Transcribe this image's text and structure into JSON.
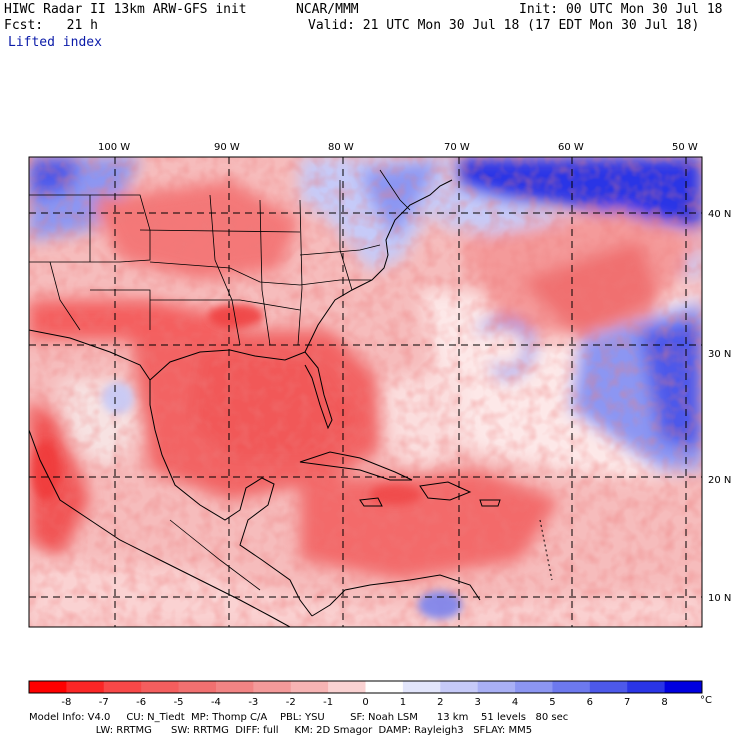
{
  "header": {
    "title": "HIWC Radar II 13km ARW-GFS init",
    "org": "NCAR/MMM",
    "init": "Init: 00 UTC Mon 30 Jul 18",
    "fcst": "Fcst:   21 h",
    "valid": "Valid: 21 UTC Mon 30 Jul 18 (17 EDT Mon 30 Jul 18)",
    "field": "Lifted index"
  },
  "map": {
    "lon_labels": [
      "100 W",
      "90 W",
      "80 W",
      "70 W",
      "60 W",
      "50 W"
    ],
    "lat_labels": [
      "40 N",
      "30 N",
      "20 N",
      "10 N"
    ],
    "lon_range": [
      -107.5,
      -48.5
    ],
    "lat_range": [
      8,
      44
    ],
    "colors": {
      "neg_strong": "#ff0000",
      "neg_mid": "#f06a6a",
      "neg_light": "#f8c8c8",
      "neutral": "#ffffff",
      "pos_light": "#d8dcf8",
      "pos_mid": "#8c96f0",
      "pos_strong": "#0000e0"
    }
  },
  "colorbar": {
    "labels": [
      "-8",
      "-7",
      "-6",
      "-5",
      "-4",
      "-3",
      "-2",
      "-1",
      "0",
      "1",
      "2",
      "3",
      "4",
      "5",
      "6",
      "7",
      "8"
    ],
    "unit": "°C",
    "colors": [
      "#ff0000",
      "#fb2626",
      "#f84848",
      "#f45e5e",
      "#f17070",
      "#f28484",
      "#f49a9a",
      "#f7b4b4",
      "#fad2d2",
      "#ffffff",
      "#e2e5fb",
      "#c6caf8",
      "#a9b0f5",
      "#8c96f2",
      "#6d79ee",
      "#4d59ea",
      "#2a35e6",
      "#0000e0"
    ]
  },
  "footer": {
    "line1": "Model Info: V4.0     CU: N_Tiedt  MP: Thomp C/A    PBL: YSU        SF: Noah LSM      13 km    51 levels   80 sec",
    "line2": "                     LW: RRTMG      SW: RRTMG  DIFF: full     KM: 2D Smagor  DAMP: Rayleigh3   SFLAY: MM5"
  }
}
